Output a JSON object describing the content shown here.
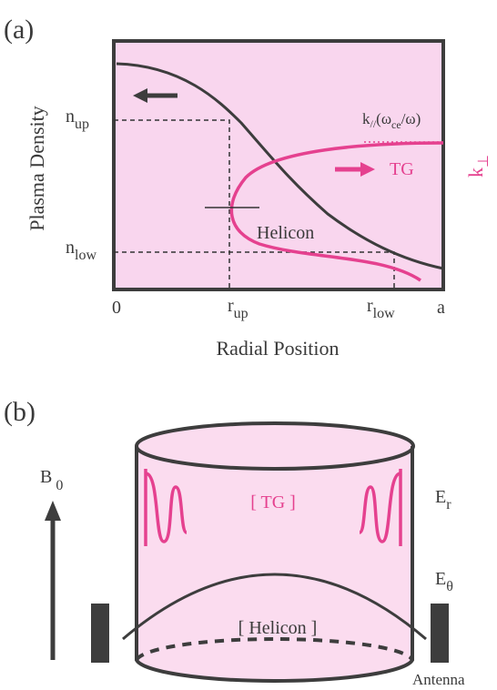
{
  "panel_a": {
    "label": "(a)",
    "y_label": "Plasma Density",
    "x_label": "Radial Position",
    "y_ticks": [
      {
        "main": "n",
        "sub": "up"
      },
      {
        "main": "n",
        "sub": "low"
      }
    ],
    "x_ticks": [
      {
        "main": "0"
      },
      {
        "main": "r",
        "sub": "up"
      },
      {
        "main": "r",
        "sub": "low"
      },
      {
        "main": "a"
      }
    ],
    "k_parallel": {
      "k": "k",
      "k_sub": "//",
      "open": "(ω",
      "w_sub": "ce",
      "close": "/ω)"
    },
    "tg": "TG",
    "helicon": "Helicon",
    "k_perp": {
      "main": "k",
      "sub": "⊥"
    }
  },
  "panel_b": {
    "label": "(b)",
    "b0": {
      "main": "B",
      "sub": "0"
    },
    "tg": "[ TG ]",
    "helicon": "[ Helicon ]",
    "er": {
      "main": "E",
      "sub": "r"
    },
    "etheta": {
      "main": "E",
      "sub": "θ"
    },
    "antenna": "Antenna"
  }
}
